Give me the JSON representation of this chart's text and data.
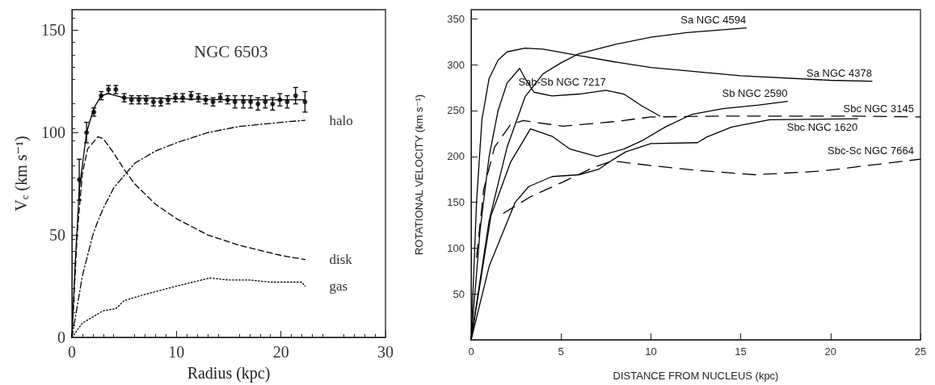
{
  "chart_data": [
    {
      "type": "line",
      "title": "NGC 6503",
      "xlabel": "Radius (kpc)",
      "ylabel": "V$_{c}$ (km s⁻¹)",
      "xlim": [
        0,
        30
      ],
      "xticks": [
        0,
        10,
        20,
        30
      ],
      "ylim": [
        0,
        160
      ],
      "yticks": [
        0,
        50,
        100,
        150
      ],
      "series": [
        {
          "type": "scatter",
          "marker": "circle",
          "color": "#000000",
          "x": [
            0.7,
            1.4,
            2.1,
            2.8,
            3.5,
            4.2,
            5.0,
            5.7,
            6.4,
            7.1,
            7.8,
            8.5,
            9.2,
            9.9,
            10.6,
            11.4,
            12.1,
            12.8,
            13.5,
            14.2,
            14.9,
            15.6,
            16.4,
            17.1,
            17.8,
            18.5,
            19.2,
            19.9,
            20.6,
            21.4,
            22.3
          ],
          "values": [
            77,
            100,
            110,
            118,
            121,
            121,
            117,
            116,
            116,
            116,
            115,
            115,
            116,
            117,
            117,
            118,
            117,
            116,
            115,
            117,
            116,
            115,
            115,
            115,
            114,
            115,
            114,
            116,
            115,
            118,
            115
          ],
          "errors": [
            10,
            5,
            2,
            2,
            2,
            2,
            2,
            2,
            2,
            2,
            2,
            2,
            2,
            2,
            2,
            2,
            2,
            2,
            2,
            2,
            2,
            3,
            3,
            3,
            3,
            3,
            3,
            3,
            3,
            4,
            5
          ]
        },
        {
          "type": "line",
          "line_style": "solid",
          "color": "#000000",
          "x": [
            0,
            0.3,
            0.7,
            1.4,
            2.1,
            2.8,
            3.5,
            5,
            10,
            15,
            20,
            22.3
          ],
          "values": [
            0,
            35,
            72,
            100,
            112,
            118,
            119,
            117,
            116.5,
            116,
            116,
            116
          ]
        },
        {
          "type": "line",
          "name": "halo",
          "line_style": "dashdot",
          "color": "#000000",
          "x": [
            0,
            0.5,
            1,
            2,
            2.5,
            3,
            4,
            5,
            6,
            8,
            10,
            13,
            16,
            20,
            22.3
          ],
          "values": [
            0,
            15,
            30,
            50,
            57,
            63,
            73,
            79,
            85,
            91,
            95,
            100,
            103,
            105,
            106
          ]
        },
        {
          "type": "line",
          "name": "disk",
          "line_style": "dashed",
          "color": "#000000",
          "x": [
            0,
            0.5,
            1,
            1.5,
            2.5,
            3,
            4,
            5,
            6,
            8,
            10,
            13,
            16,
            20,
            22.3
          ],
          "values": [
            0,
            50,
            80,
            92,
            98,
            97,
            90,
            82,
            75,
            65,
            58,
            50,
            45,
            40,
            38
          ]
        },
        {
          "type": "line",
          "name": "gas",
          "line_style": "dotted",
          "color": "#000000",
          "x": [
            0,
            1,
            2,
            3,
            4.2,
            5,
            7,
            10,
            13.2,
            15,
            17,
            19,
            22,
            22.3
          ],
          "values": [
            0,
            7,
            10,
            13,
            14,
            18,
            21,
            25,
            29,
            28,
            28,
            27,
            27,
            25
          ]
        }
      ]
    },
    {
      "type": "line",
      "xlabel": "DISTANCE FROM NUCLEUS (kpc)",
      "ylabel": "ROTATIONAL VELOCITY (km s⁻¹)",
      "xlim": [
        0,
        25
      ],
      "xticks": [
        0,
        5,
        10,
        15,
        20,
        25
      ],
      "ylim": [
        0,
        360
      ],
      "yticks": [
        50,
        100,
        150,
        200,
        250,
        300,
        350
      ],
      "series": [
        {
          "name": "Sa NGC 4594",
          "line_style": "solid",
          "color": "#000000",
          "x": [
            0,
            1,
            2,
            3,
            4,
            5,
            6,
            8,
            10,
            12,
            15.3
          ],
          "values": [
            0,
            130,
            210,
            265,
            290,
            302,
            312,
            322,
            330,
            335,
            340
          ]
        },
        {
          "name": "Sa NGC 4378",
          "line_style": "solid",
          "color": "#000000",
          "x": [
            0,
            0.3,
            0.6,
            1,
            1.5,
            2,
            3,
            4,
            6,
            8,
            10,
            15,
            20,
            22.3
          ],
          "values": [
            0,
            150,
            240,
            285,
            305,
            314,
            318,
            317,
            310,
            303,
            297,
            288,
            283,
            282
          ]
        },
        {
          "name": "Sab-Sb NGC 7217",
          "line_style": "solid",
          "color": "#000000",
          "x": [
            0,
            0.5,
            1,
            1.5,
            2,
            2.7,
            3,
            3.5,
            4.5,
            6,
            7.5,
            8.5,
            9.5,
            10.5
          ],
          "values": [
            0,
            120,
            200,
            250,
            280,
            296,
            285,
            270,
            266,
            268,
            272,
            268,
            255,
            244
          ]
        },
        {
          "name": "Sb NGC 2590",
          "line_style": "solid",
          "color": "#000000",
          "x": [
            0,
            1.1,
            2.2,
            3.3,
            4.5,
            5.5,
            7,
            8.5,
            9.5,
            10.8,
            12.3,
            14,
            16,
            17.6
          ],
          "values": [
            0,
            135,
            194,
            230,
            222,
            208,
            200,
            208,
            217,
            232,
            246,
            252,
            256,
            260
          ]
        },
        {
          "name": "Sbc NGC 3145",
          "line_style": "dashed",
          "color": "#000000",
          "x": [
            0.3,
            0.7,
            1.3,
            2.2,
            2.9,
            5.1,
            8,
            10,
            14,
            18,
            21,
            25
          ],
          "values": [
            90,
            164,
            210,
            235,
            239,
            233,
            238,
            243,
            244,
            244,
            244,
            243
          ]
        },
        {
          "name": "Sbc NGC 1620",
          "line_style": "solid",
          "color": "#000000",
          "x": [
            0,
            1,
            2.45,
            3.2,
            4.5,
            6,
            7.1,
            7.85,
            8.6,
            10,
            12.6,
            13.1,
            14.5,
            16.6,
            21.5
          ],
          "values": [
            0,
            80,
            150,
            167,
            178,
            180,
            186,
            196,
            205,
            214,
            215,
            221,
            232,
            240,
            241
          ]
        },
        {
          "name": "Sbc-Sc NGC 7664",
          "line_style": "dashed",
          "color": "#000000",
          "x": [
            1.8,
            3.3,
            5.1,
            6.8,
            7.85,
            10,
            12.4,
            15.8,
            19.5,
            25
          ],
          "values": [
            138,
            156,
            172,
            188,
            195,
            190,
            185,
            180,
            184,
            197
          ]
        }
      ]
    }
  ]
}
